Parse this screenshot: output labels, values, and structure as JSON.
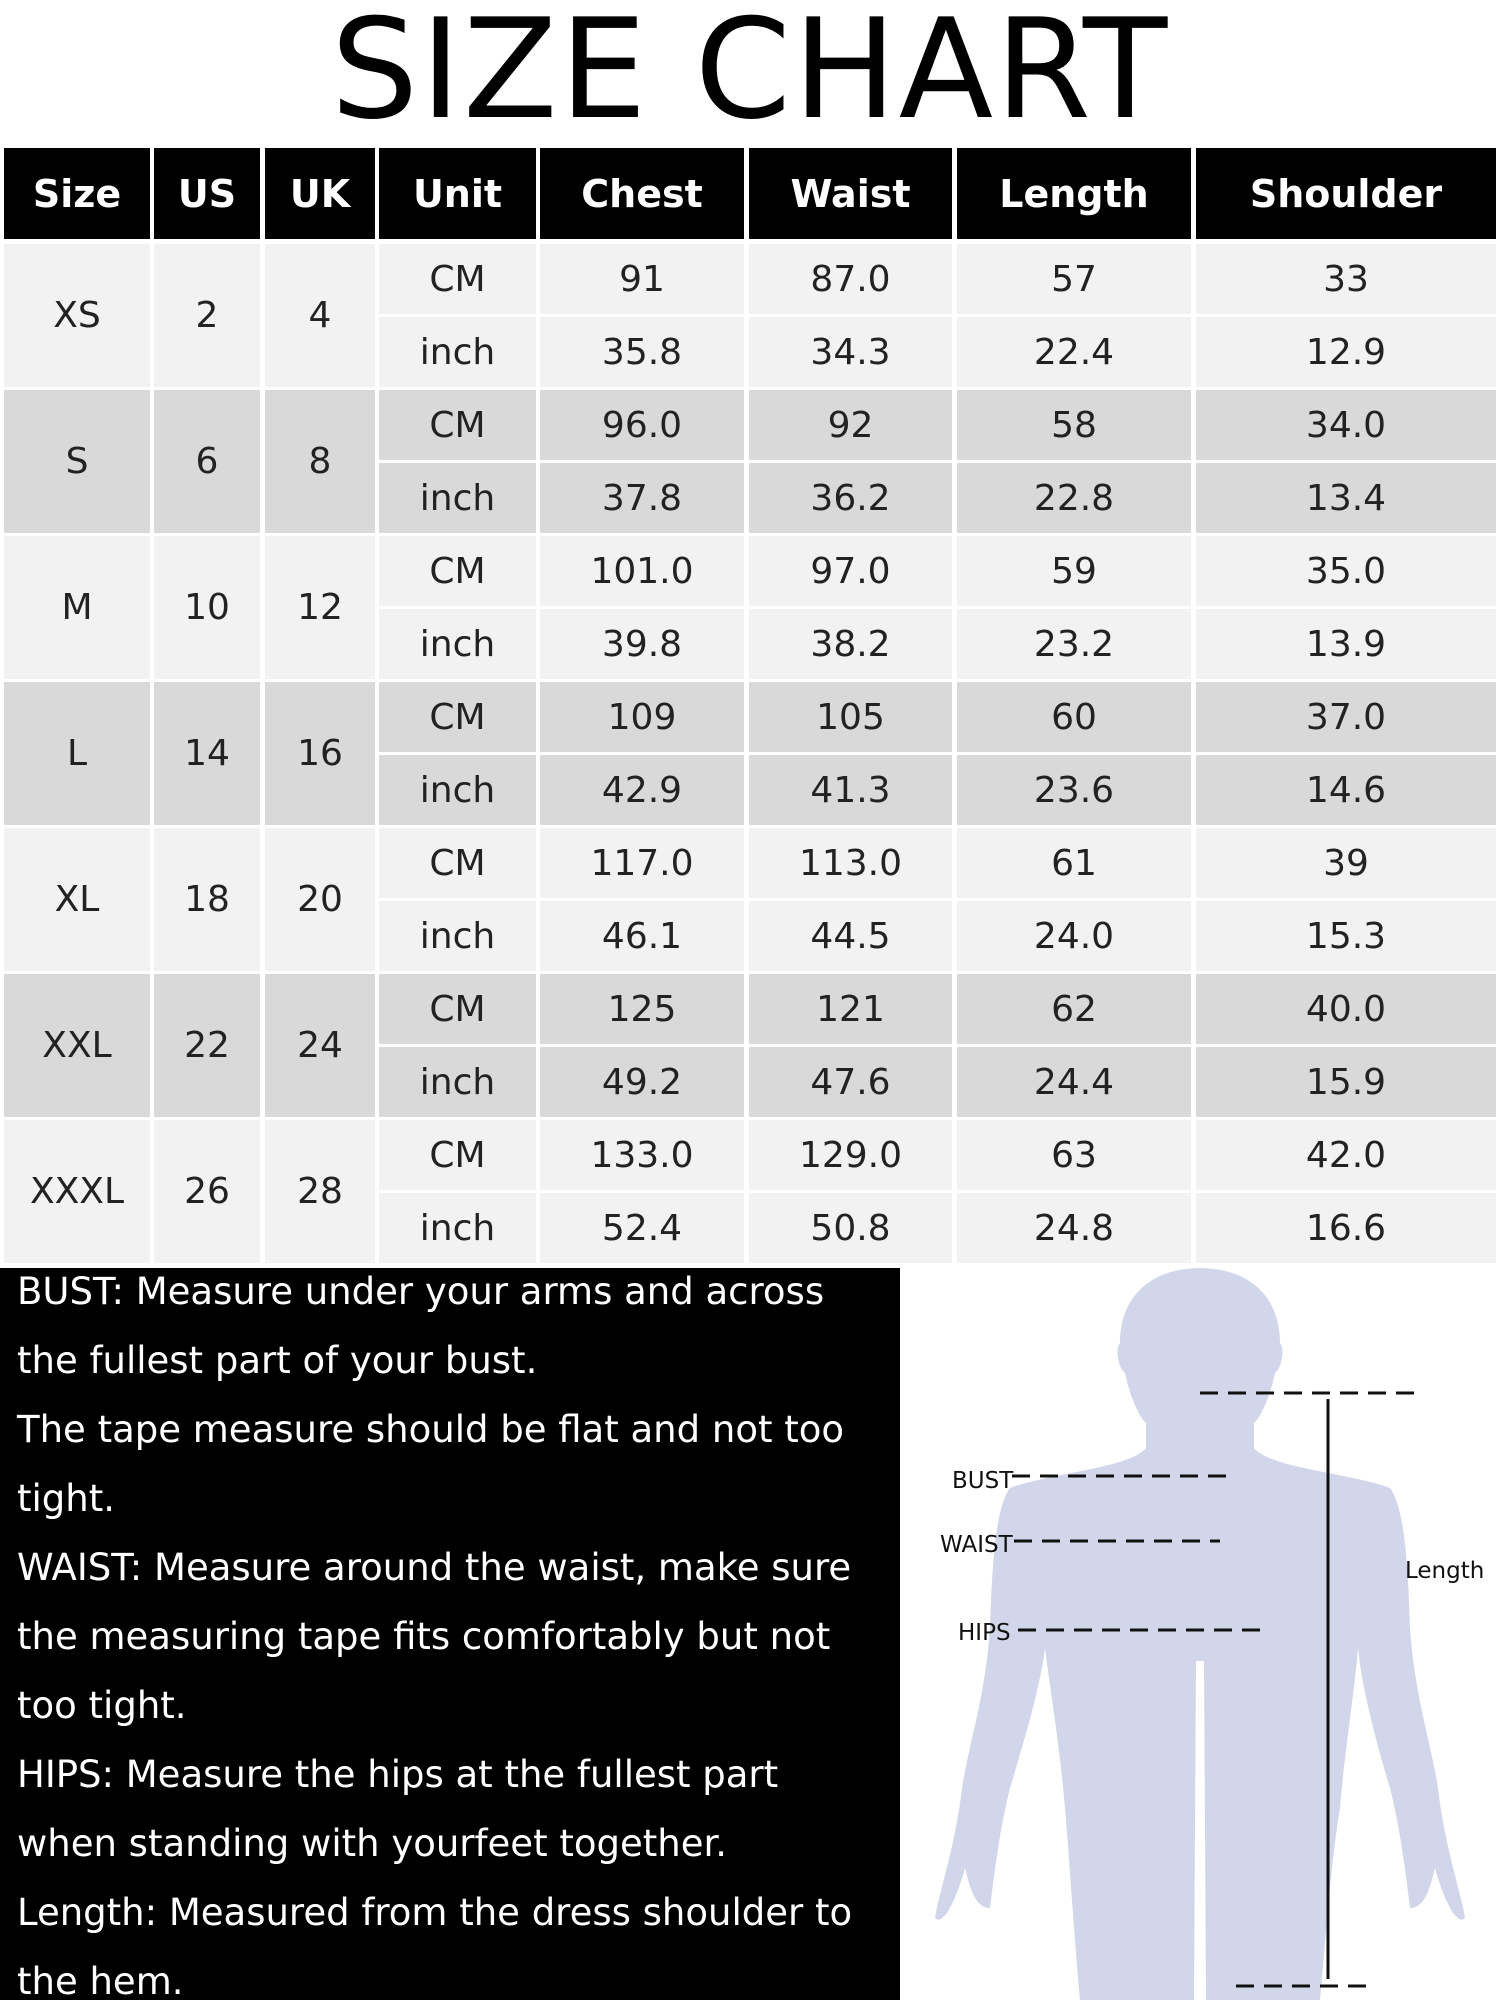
{
  "title": "SIZE CHART",
  "headers": [
    "Size",
    "US",
    "UK",
    "Unit",
    "Chest",
    "Waist",
    "Length",
    "Shoulder"
  ],
  "rows": [
    {
      "size": "XS",
      "us": "2",
      "uk": "4",
      "cm": [
        "91",
        "87.0",
        "57",
        "33"
      ],
      "inch": [
        "35.8",
        "34.3",
        "22.4",
        "12.9"
      ]
    },
    {
      "size": "S",
      "us": "6",
      "uk": "8",
      "cm": [
        "96.0",
        "92",
        "58",
        "34.0"
      ],
      "inch": [
        "37.8",
        "36.2",
        "22.8",
        "13.4"
      ]
    },
    {
      "size": "M",
      "us": "10",
      "uk": "12",
      "cm": [
        "101.0",
        "97.0",
        "59",
        "35.0"
      ],
      "inch": [
        "39.8",
        "38.2",
        "23.2",
        "13.9"
      ]
    },
    {
      "size": "L",
      "us": "14",
      "uk": "16",
      "cm": [
        "109",
        "105",
        "60",
        "37.0"
      ],
      "inch": [
        "42.9",
        "41.3",
        "23.6",
        "14.6"
      ]
    },
    {
      "size": "XL",
      "us": "18",
      "uk": "20",
      "cm": [
        "117.0",
        "113.0",
        "61",
        "39"
      ],
      "inch": [
        "46.1",
        "44.5",
        "24.0",
        "15.3"
      ]
    },
    {
      "size": "XXL",
      "us": "22",
      "uk": "24",
      "cm": [
        "125",
        "121",
        "62",
        "40.0"
      ],
      "inch": [
        "49.2",
        "47.6",
        "24.4",
        "15.9"
      ]
    },
    {
      "size": "XXXL",
      "us": "26",
      "uk": "28",
      "cm": [
        "133.0",
        "129.0",
        "63",
        "42.0"
      ],
      "inch": [
        "52.4",
        "50.8",
        "24.8",
        "16.6"
      ]
    }
  ],
  "units": {
    "cm": "CM",
    "inch": "inch"
  },
  "notes": [
    "BUST: Measure under your arms and across",
    "the fullest part of your bust.",
    "The tape measure should be flat and not too",
    "tight.",
    "WAIST: Measure around the waist, make sure",
    "the measuring tape fits comfortably but not",
    "too tight.",
    "HIPS: Measure the hips at the fullest part",
    "when standing with yourfeet together.",
    "Length: Measured from the dress shoulder to",
    "the hem."
  ],
  "figure": {
    "bust": "BUST",
    "waist": "WAIST",
    "hips": "HIPS",
    "length": "Length"
  },
  "colors": {
    "header_bg": "#000000",
    "row_light": "#f2f2f2",
    "row_dark": "#d9d9d9",
    "silhouette": "#d2d6ea"
  }
}
